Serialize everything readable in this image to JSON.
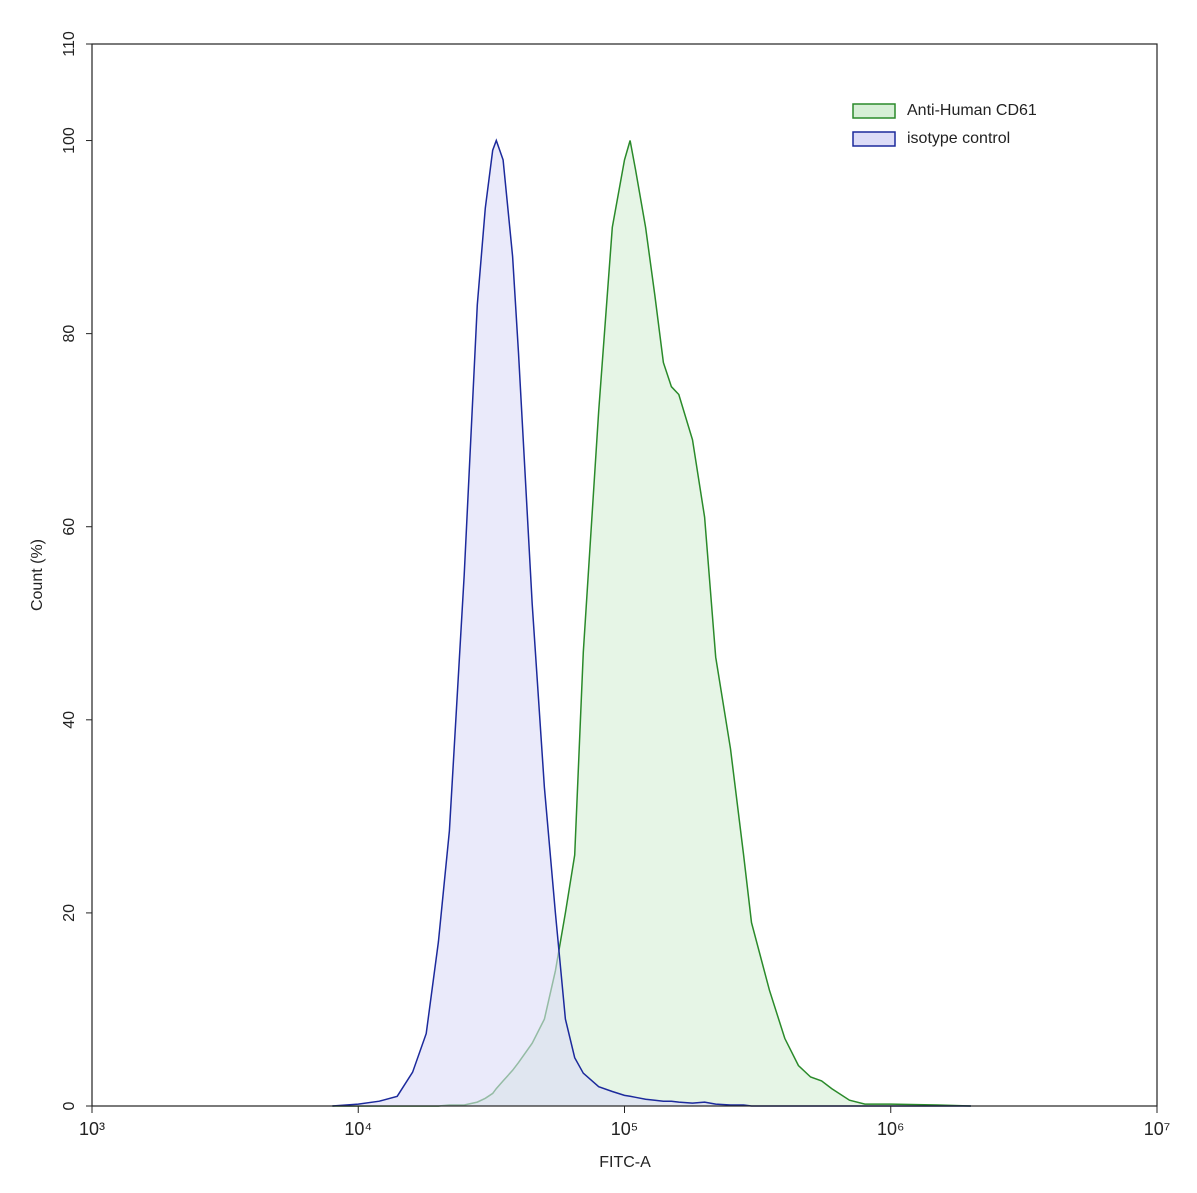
{
  "chart_data": {
    "type": "area",
    "x_label": "FITC-A",
    "y_label": "Count (%)",
    "xscale": "log",
    "xlim": [
      1000,
      10000000
    ],
    "xticks": [
      {
        "value": 1000,
        "label": "10³"
      },
      {
        "value": 10000,
        "label": "10⁴"
      },
      {
        "value": 100000,
        "label": "10⁵"
      },
      {
        "value": 1000000,
        "label": "10⁶"
      },
      {
        "value": 10000000,
        "label": "10⁷"
      }
    ],
    "ylim": [
      0,
      110
    ],
    "yticks": [
      0,
      20,
      40,
      60,
      80,
      100,
      110
    ],
    "grid": false,
    "legend": "upper right",
    "x": [
      8000,
      10000,
      12000,
      14000,
      16000,
      18000,
      20000,
      22000,
      25000,
      28000,
      30000,
      32000,
      33000,
      35000,
      38000,
      40000,
      45000,
      50000,
      55000,
      60000,
      65000,
      70000,
      80000,
      90000,
      100000,
      105000,
      110000,
      120000,
      130000,
      140000,
      150000,
      160000,
      180000,
      200000,
      220000,
      250000,
      280000,
      300000,
      350000,
      400000,
      450000,
      500000,
      550000,
      600000,
      700000,
      800000,
      1000000,
      1500000,
      2000000
    ],
    "series": [
      {
        "name": "Anti-Human CD61",
        "color": "#2a8a2a",
        "fill": "#d6efd6",
        "values": [
          0,
          0,
          0,
          0,
          0,
          0,
          0,
          0.1,
          0.1,
          0.4,
          0.8,
          1.3,
          1.8,
          2.6,
          3.7,
          4.5,
          6.5,
          9,
          14,
          20,
          26,
          47,
          72,
          91,
          98,
          100,
          97,
          91,
          84,
          77,
          74.5,
          73.7,
          69,
          61,
          46.5,
          37,
          26,
          19,
          12,
          7,
          4.2,
          3,
          2.6,
          1.8,
          0.6,
          0.2,
          0.2,
          0.1,
          0
        ]
      },
      {
        "name": "isotype control",
        "color": "#1c2a9c",
        "fill": "#dcdcf7",
        "values": [
          0,
          0.2,
          0.5,
          1,
          3.5,
          7.5,
          17,
          28.5,
          55,
          83,
          93,
          99,
          100,
          98,
          88,
          78,
          52,
          33,
          20,
          9,
          5,
          3.4,
          2,
          1.5,
          1.1,
          1,
          0.9,
          0.7,
          0.6,
          0.5,
          0.5,
          0.4,
          0.3,
          0.4,
          0.2,
          0.1,
          0.1,
          0,
          0,
          0,
          0,
          0,
          0,
          0,
          0,
          0,
          0,
          0,
          0
        ]
      }
    ]
  }
}
